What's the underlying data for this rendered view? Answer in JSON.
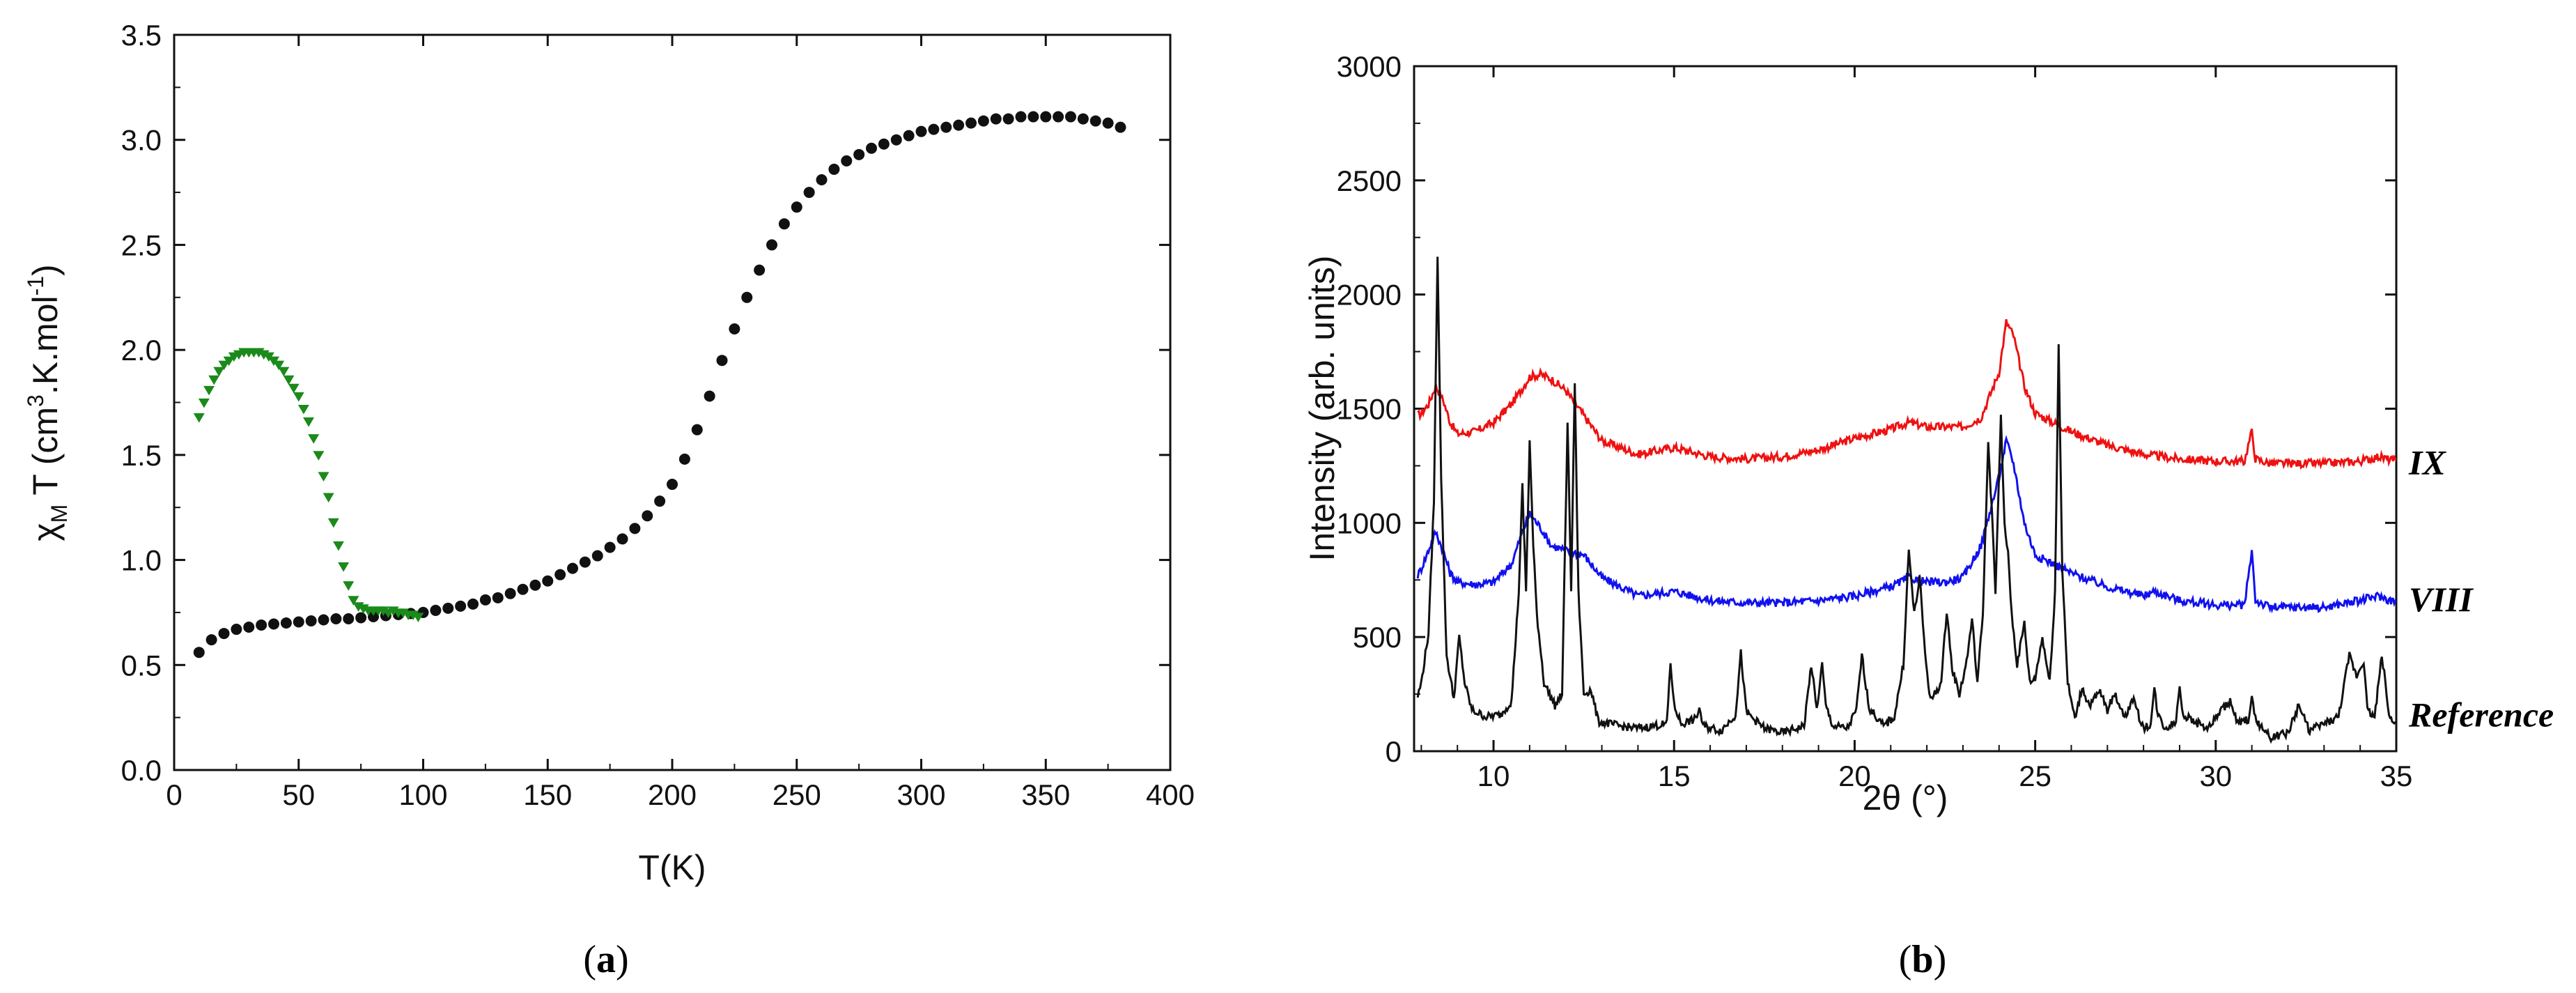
{
  "chart_data": [
    {
      "type": "scatter",
      "panel_label": "(a)",
      "panel_letter": "a",
      "xlabel": "T(K)",
      "ylabel": "χ_M T (cm^3.K.mol^-1)",
      "ylabel_parts": {
        "chi": "χ",
        "sub": "M",
        "t": " T (cm",
        "sup1": "3",
        "mid": ".K.mol",
        "sup2": "-1",
        "end": ")"
      },
      "xlim": [
        0,
        400
      ],
      "ylim": [
        0,
        3.5
      ],
      "xticks": [
        0,
        50,
        100,
        150,
        200,
        250,
        300,
        350,
        400
      ],
      "yticks": [
        0.0,
        0.5,
        1.0,
        1.5,
        2.0,
        2.5,
        3.0,
        3.5
      ],
      "ytick_labels": [
        "0.0",
        "0.5",
        "1.0",
        "1.5",
        "2.0",
        "2.5",
        "3.0",
        "3.5"
      ],
      "grid": false,
      "series": [
        {
          "name": "black circles",
          "color": "#111111",
          "marker": "circle",
          "x": [
            10,
            15,
            20,
            25,
            30,
            35,
            40,
            45,
            50,
            55,
            60,
            65,
            70,
            75,
            80,
            85,
            90,
            95,
            100,
            105,
            110,
            115,
            120,
            125,
            130,
            135,
            140,
            145,
            150,
            155,
            160,
            165,
            170,
            175,
            180,
            185,
            190,
            195,
            200,
            205,
            210,
            215,
            220,
            225,
            230,
            235,
            240,
            245,
            250,
            255,
            260,
            265,
            270,
            275,
            280,
            285,
            290,
            295,
            300,
            305,
            310,
            315,
            320,
            325,
            330,
            335,
            340,
            345,
            350,
            355,
            360,
            365,
            370,
            375,
            380
          ],
          "values": [
            0.56,
            0.62,
            0.65,
            0.67,
            0.68,
            0.69,
            0.695,
            0.7,
            0.705,
            0.71,
            0.715,
            0.72,
            0.72,
            0.725,
            0.73,
            0.735,
            0.74,
            0.745,
            0.75,
            0.76,
            0.77,
            0.78,
            0.79,
            0.81,
            0.82,
            0.84,
            0.86,
            0.88,
            0.9,
            0.93,
            0.96,
            0.99,
            1.02,
            1.06,
            1.1,
            1.15,
            1.21,
            1.28,
            1.36,
            1.48,
            1.62,
            1.78,
            1.95,
            2.1,
            2.25,
            2.38,
            2.5,
            2.6,
            2.68,
            2.75,
            2.81,
            2.86,
            2.9,
            2.93,
            2.96,
            2.98,
            3.0,
            3.02,
            3.04,
            3.05,
            3.06,
            3.07,
            3.08,
            3.09,
            3.1,
            3.1,
            3.11,
            3.11,
            3.11,
            3.11,
            3.11,
            3.1,
            3.09,
            3.08,
            3.06
          ]
        },
        {
          "name": "green triangles",
          "color": "#1a8a1a",
          "marker": "triangle-down",
          "x": [
            10,
            12,
            14,
            16,
            18,
            20,
            22,
            24,
            26,
            28,
            30,
            32,
            34,
            36,
            38,
            40,
            42,
            44,
            46,
            48,
            50,
            52,
            54,
            56,
            58,
            60,
            62,
            64,
            66,
            68,
            70,
            72,
            74,
            76,
            78,
            80,
            82,
            84,
            86,
            88,
            90,
            92,
            94,
            96,
            98
          ],
          "values": [
            1.68,
            1.75,
            1.81,
            1.86,
            1.9,
            1.93,
            1.95,
            1.97,
            1.98,
            1.99,
            1.99,
            1.99,
            1.99,
            1.98,
            1.97,
            1.95,
            1.93,
            1.9,
            1.86,
            1.82,
            1.78,
            1.72,
            1.66,
            1.58,
            1.5,
            1.4,
            1.3,
            1.18,
            1.07,
            0.97,
            0.88,
            0.81,
            0.78,
            0.77,
            0.76,
            0.76,
            0.76,
            0.76,
            0.75,
            0.76,
            0.75,
            0.75,
            0.74,
            0.74,
            0.73
          ]
        }
      ]
    },
    {
      "type": "line",
      "panel_label": "(b)",
      "panel_letter": "b",
      "xlabel": "2θ (°)",
      "ylabel": "Intensity (arb. units)",
      "xlim": [
        7.8,
        35
      ],
      "ylim": [
        0,
        3000
      ],
      "xticks": [
        10,
        15,
        20,
        25,
        30,
        35
      ],
      "yticks": [
        0,
        500,
        1000,
        1500,
        2000,
        2500,
        3000
      ],
      "grid": false,
      "series": [
        {
          "name": "IX",
          "color": "#ee1111",
          "baseline": 1280,
          "x": [
            7.9,
            8.0,
            8.2,
            8.4,
            8.6,
            8.8,
            9.0,
            9.5,
            10.0,
            10.5,
            10.8,
            11.0,
            11.3,
            11.6,
            12.0,
            12.5,
            13.0,
            14.0,
            15.0,
            15.5,
            16.0,
            17.0,
            18.0,
            19.0,
            20.0,
            21.0,
            21.5,
            22.0,
            22.5,
            23.0,
            23.5,
            24.0,
            24.2,
            24.4,
            24.7,
            25.0,
            25.5,
            26.0,
            27.0,
            28.0,
            29.0,
            30.0,
            30.8,
            30.9,
            31.0,
            31.1,
            31.5,
            32.0,
            33.0,
            34.0,
            34.5,
            35.0
          ],
          "values": [
            1470,
            1480,
            1520,
            1600,
            1540,
            1440,
            1390,
            1400,
            1440,
            1520,
            1590,
            1640,
            1650,
            1630,
            1580,
            1470,
            1360,
            1300,
            1330,
            1310,
            1290,
            1280,
            1290,
            1320,
            1370,
            1410,
            1440,
            1420,
            1420,
            1420,
            1460,
            1660,
            1880,
            1820,
            1600,
            1480,
            1440,
            1400,
            1340,
            1300,
            1280,
            1270,
            1270,
            1340,
            1400,
            1280,
            1260,
            1260,
            1260,
            1270,
            1290,
            1270
          ]
        },
        {
          "name": "VIII",
          "color": "#1111ee",
          "baseline": 680,
          "x": [
            7.9,
            8.0,
            8.2,
            8.4,
            8.6,
            8.8,
            9.0,
            9.5,
            10.0,
            10.5,
            10.8,
            11.0,
            11.3,
            11.6,
            12.0,
            12.5,
            13.0,
            14.0,
            15.0,
            15.5,
            16.0,
            17.0,
            18.0,
            19.0,
            20.0,
            21.0,
            21.5,
            22.0,
            22.5,
            23.0,
            23.5,
            24.0,
            24.2,
            24.4,
            24.7,
            25.0,
            25.5,
            26.0,
            27.0,
            28.0,
            28.3,
            29.0,
            30.0,
            30.8,
            30.9,
            31.0,
            31.1,
            31.5,
            32.0,
            33.0,
            34.0,
            34.5,
            35.0
          ],
          "values": [
            770,
            800,
            880,
            960,
            880,
            780,
            740,
            730,
            740,
            820,
            960,
            1040,
            980,
            900,
            880,
            860,
            760,
            680,
            700,
            680,
            660,
            650,
            650,
            660,
            680,
            720,
            760,
            740,
            740,
            760,
            900,
            1200,
            1360,
            1260,
            1000,
            860,
            820,
            780,
            720,
            680,
            700,
            660,
            640,
            640,
            760,
            880,
            660,
            630,
            630,
            630,
            660,
            680,
            650
          ]
        },
        {
          "name": "Reference",
          "color": "#111111",
          "baseline": 120,
          "x": [
            7.9,
            8.0,
            8.2,
            8.35,
            8.45,
            8.55,
            8.7,
            8.9,
            9.05,
            9.2,
            9.4,
            9.8,
            10.2,
            10.5,
            10.7,
            10.8,
            10.9,
            11.0,
            11.1,
            11.2,
            11.4,
            11.7,
            11.9,
            12.05,
            12.15,
            12.25,
            12.35,
            12.5,
            12.7,
            12.9,
            13.5,
            14.0,
            14.8,
            14.9,
            15.0,
            15.2,
            15.6,
            15.7,
            15.8,
            16.3,
            16.7,
            16.85,
            17.0,
            17.5,
            18.0,
            18.6,
            18.8,
            18.95,
            19.1,
            19.2,
            19.4,
            19.8,
            20.05,
            20.2,
            20.4,
            20.8,
            21.1,
            21.35,
            21.5,
            21.65,
            21.8,
            21.95,
            22.1,
            22.4,
            22.55,
            22.7,
            22.9,
            23.1,
            23.25,
            23.4,
            23.55,
            23.7,
            23.8,
            23.9,
            24.05,
            24.15,
            24.25,
            24.35,
            24.5,
            24.7,
            24.85,
            25.0,
            25.2,
            25.4,
            25.55,
            25.65,
            25.75,
            25.9,
            26.1,
            26.3,
            26.5,
            26.8,
            27.0,
            27.2,
            27.5,
            27.7,
            28.0,
            28.2,
            28.3,
            28.4,
            28.6,
            28.9,
            29.0,
            29.1,
            29.4,
            29.8,
            30.1,
            30.4,
            30.6,
            30.9,
            31.0,
            31.1,
            31.3,
            31.5,
            32.0,
            32.3,
            32.6,
            33.0,
            33.4,
            33.7,
            33.9,
            34.1,
            34.2,
            34.4,
            34.6,
            34.7,
            34.8,
            35.0
          ],
          "values": [
            240,
            300,
            520,
            1100,
            2180,
            1200,
            420,
            230,
            500,
            300,
            180,
            150,
            160,
            220,
            700,
            1160,
            700,
            1360,
            900,
            600,
            300,
            200,
            250,
            1450,
            700,
            1620,
            700,
            250,
            270,
            130,
            110,
            100,
            120,
            390,
            200,
            120,
            140,
            190,
            110,
            90,
            160,
            430,
            170,
            100,
            80,
            110,
            380,
            180,
            380,
            200,
            110,
            100,
            180,
            420,
            190,
            110,
            150,
            380,
            880,
            600,
            760,
            430,
            220,
            300,
            620,
            360,
            250,
            390,
            580,
            300,
            600,
            1350,
            1050,
            700,
            1460,
            1000,
            860,
            600,
            380,
            560,
            300,
            320,
            500,
            300,
            700,
            1780,
            800,
            300,
            140,
            280,
            200,
            260,
            180,
            250,
            150,
            230,
            100,
            120,
            270,
            160,
            100,
            130,
            290,
            160,
            130,
            100,
            170,
            220,
            120,
            140,
            230,
            140,
            100,
            60,
            80,
            200,
            90,
            120,
            150,
            420,
            330,
            400,
            180,
            150,
            420,
            300,
            150,
            130
          ]
        }
      ]
    }
  ]
}
